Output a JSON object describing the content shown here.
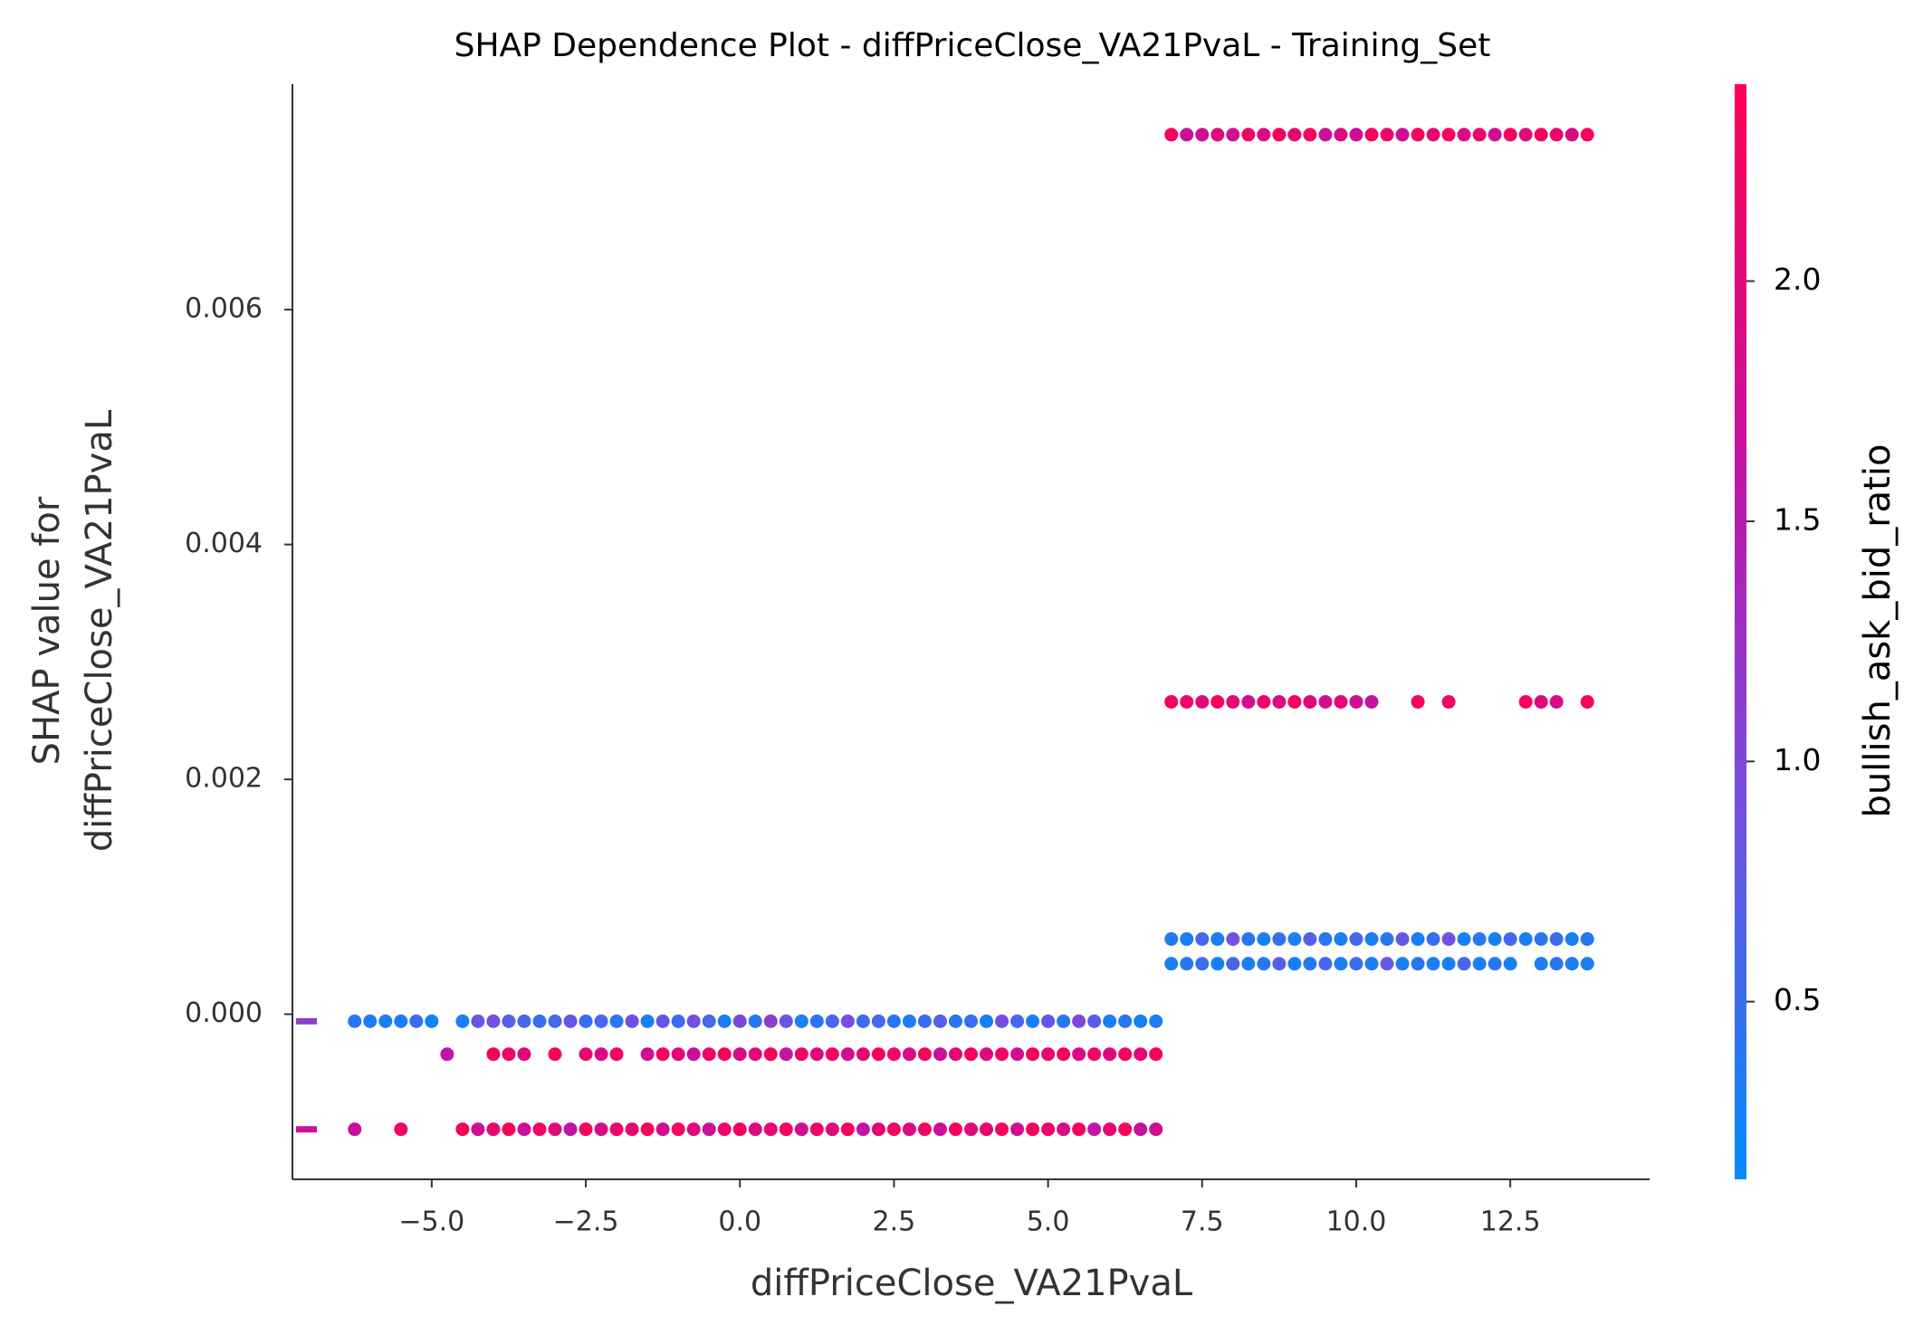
{
  "chart_data": {
    "type": "scatter",
    "title": "SHAP Dependence Plot - diffPriceClose_VA21PvaL - Training_Set",
    "xlabel": "diffPriceClose_VA21PvaL",
    "ylabel": [
      "SHAP value for",
      "diffPriceClose_VA21PvaL"
    ],
    "xlim": [
      -7.26,
      14.76
    ],
    "ylim": [
      -0.001406,
      0.00792
    ],
    "xticks": [
      {
        "value": -5,
        "label": "−5.0"
      },
      {
        "value": -2.5,
        "label": "−2.5"
      },
      {
        "value": 0,
        "label": "0.0"
      },
      2.5,
      {
        "value": 5,
        "label": "5.0"
      },
      7.5,
      {
        "value": 10,
        "label": "10.0"
      },
      12.5
    ],
    "yticks": [
      {
        "value": 0,
        "label": "0.000"
      },
      0.002,
      0.004,
      0.006
    ],
    "colorbar": {
      "label": "bullish_ask_bid_ratio",
      "lim": [
        0.13,
        2.41
      ],
      "ticks": [
        0.5,
        {
          "value": 1,
          "label": "1.0"
        },
        1.5,
        {
          "value": 2,
          "label": "2.0"
        }
      ],
      "colormap": [
        "#008bfb",
        "#7350e2",
        "#c5119f",
        "#ff0051"
      ]
    },
    "groups": [
      {
        "y": -6e-05,
        "x": [
          -6.25,
          -6,
          -5.75,
          -5.5,
          -5.25,
          -5,
          -4.5,
          -4.25,
          -4,
          -3.75,
          -3.5,
          -3.25,
          -3,
          -2.75,
          -2.5,
          -2.25,
          -2,
          -1.75,
          -1.5,
          -1.25,
          -1,
          -0.75,
          -0.5,
          -0.25,
          0,
          0.25,
          0.5,
          0.75,
          1,
          1.25,
          1.5,
          1.75,
          2,
          2.25,
          2.5,
          2.75,
          3,
          3.25,
          3.5,
          3.75,
          4,
          4.25,
          4.5,
          4.75,
          5,
          5.25,
          5.5,
          5.75,
          6,
          6.25,
          6.5,
          6.75
        ],
        "c": [
          0.4,
          0.3,
          0.3,
          0.3,
          0.5,
          0.2,
          0.3,
          0.8,
          0.9,
          0.7,
          0.6,
          0.5,
          0.6,
          0.8,
          0.5,
          0.6,
          0.4,
          0.9,
          0.3,
          0.8,
          0.5,
          0.9,
          0.6,
          0.3,
          1.0,
          0.4,
          1.1,
          0.8,
          0.3,
          0.4,
          0.6,
          0.9,
          0.5,
          0.6,
          0.4,
          0.3,
          0.5,
          0.7,
          0.4,
          0.5,
          0.3,
          0.9,
          0.6,
          0.3,
          0.8,
          0.4,
          1.0,
          0.7,
          0.3,
          0.4,
          0.3,
          0.3
        ]
      },
      {
        "y": -0.00034,
        "x": [
          -4.75,
          -4,
          -3.75,
          -3.5,
          -3,
          -2.5,
          -2.25,
          -2,
          -1.5,
          -1.25,
          -1,
          -0.75,
          -0.5,
          -0.25,
          0,
          0.25,
          0.5,
          0.75,
          1,
          1.25,
          1.5,
          1.75,
          2,
          2.25,
          2.5,
          2.75,
          3,
          3.25,
          3.5,
          3.75,
          4,
          4.25,
          4.5,
          4.75,
          5,
          5.25,
          5.5,
          5.75,
          6,
          6.25,
          6.5,
          6.75
        ],
        "c": [
          1.6,
          2.3,
          2.2,
          2.0,
          2.3,
          2.1,
          1.9,
          2.2,
          1.8,
          2.3,
          2.0,
          1.7,
          2.2,
          2.3,
          1.9,
          2.1,
          2.3,
          1.6,
          2.2,
          2.0,
          2.3,
          1.8,
          2.1,
          2.3,
          2.2,
          1.9,
          2.3,
          1.7,
          2.1,
          2.3,
          2.0,
          2.2,
          1.8,
          2.3,
          2.1,
          2.3,
          1.9,
          2.2,
          2.0,
          2.3,
          2.1,
          2.3
        ]
      },
      {
        "y": -0.00098,
        "x": [
          -6.25,
          -5.5,
          -4.5,
          -4.25,
          -4,
          -3.75,
          -3.5,
          -3.25,
          -3,
          -2.75,
          -2.5,
          -2.25,
          -2,
          -1.75,
          -1.5,
          -1.25,
          -1,
          -0.75,
          -0.5,
          -0.25,
          0,
          0.25,
          0.5,
          0.75,
          1,
          1.25,
          1.5,
          1.75,
          2,
          2.25,
          2.5,
          2.75,
          3,
          3.25,
          3.5,
          3.75,
          4,
          4.25,
          4.5,
          4.75,
          5,
          5.25,
          5.5,
          5.75,
          6,
          6.25,
          6.5,
          6.75
        ],
        "c": [
          1.7,
          2.2,
          2.3,
          1.8,
          2.1,
          2.3,
          1.7,
          2.2,
          2.0,
          1.6,
          2.3,
          1.9,
          2.2,
          2.1,
          2.3,
          1.8,
          2.3,
          2.0,
          1.7,
          2.2,
          2.3,
          1.9,
          2.1,
          2.3,
          1.8,
          2.2,
          2.0,
          2.3,
          1.6,
          2.1,
          2.3,
          1.9,
          2.2,
          1.7,
          2.3,
          2.0,
          2.1,
          2.3,
          1.8,
          2.3,
          2.2,
          1.9,
          2.3,
          1.6,
          2.1,
          2.3,
          1.7,
          1.8
        ]
      },
      {
        "y": 0.00749,
        "x": [
          7,
          7.25,
          7.5,
          7.75,
          8,
          8.25,
          8.5,
          8.75,
          9,
          9.25,
          9.5,
          9.75,
          10,
          10.25,
          10.5,
          10.75,
          11,
          11.25,
          11.5,
          11.75,
          12,
          12.25,
          12.5,
          12.75,
          13,
          13.25,
          13.5,
          13.75
        ],
        "c": [
          2.3,
          1.7,
          1.8,
          2.0,
          1.8,
          2.2,
          1.9,
          2.3,
          2.1,
          2.3,
          1.7,
          2.0,
          1.8,
          2.3,
          2.2,
          1.8,
          2.3,
          2.1,
          2.3,
          1.9,
          2.2,
          1.8,
          2.3,
          2.0,
          2.3,
          2.2,
          1.9,
          2.3
        ]
      },
      {
        "y": 0.00266,
        "x": [
          7,
          7.25,
          7.5,
          7.75,
          8,
          8.25,
          8.5,
          8.75,
          9,
          9.25,
          9.5,
          9.75,
          10,
          10.25,
          11,
          11.5,
          12.75,
          13,
          13.25,
          13.75
        ],
        "c": [
          2.3,
          2.2,
          2.0,
          2.3,
          2.1,
          1.8,
          2.2,
          1.9,
          2.3,
          2.0,
          1.8,
          2.1,
          1.7,
          1.6,
          2.3,
          2.2,
          2.3,
          2.0,
          1.9,
          2.3
        ]
      },
      {
        "y": 0.00064,
        "x": [
          7,
          7.25,
          7.5,
          7.75,
          8,
          8.25,
          8.5,
          8.75,
          9,
          9.25,
          9.5,
          9.75,
          10,
          10.25,
          10.5,
          10.75,
          11,
          11.25,
          11.5,
          11.75,
          12,
          12.25,
          12.5,
          12.75,
          13,
          13.25,
          13.5,
          13.75
        ],
        "c": [
          0.4,
          0.3,
          0.6,
          0.3,
          0.9,
          0.4,
          0.3,
          0.5,
          0.3,
          0.7,
          0.4,
          0.3,
          0.6,
          0.3,
          0.4,
          0.8,
          0.3,
          0.5,
          0.9,
          0.3,
          0.4,
          0.3,
          0.6,
          0.3,
          0.4,
          0.5,
          0.3,
          0.4
        ]
      },
      {
        "y": 0.00043,
        "x": [
          7,
          7.25,
          7.5,
          7.75,
          8,
          8.25,
          8.5,
          8.75,
          9,
          9.25,
          9.5,
          9.75,
          10,
          10.25,
          10.5,
          10.75,
          11,
          11.25,
          11.5,
          11.75,
          12,
          12.25,
          12.5,
          13,
          13.25,
          13.5,
          13.75
        ],
        "c": [
          0.3,
          0.4,
          0.5,
          0.3,
          0.6,
          0.3,
          0.4,
          0.7,
          0.3,
          0.4,
          0.6,
          0.3,
          0.5,
          0.3,
          0.8,
          0.3,
          0.4,
          0.3,
          0.3,
          0.6,
          0.3,
          0.4,
          0.3,
          0.3,
          0.4,
          0.3,
          0.3
        ]
      }
    ],
    "missing": [
      {
        "y": -6e-05,
        "c": 1.1
      },
      {
        "y": -0.00098,
        "c": 1.7
      }
    ]
  }
}
